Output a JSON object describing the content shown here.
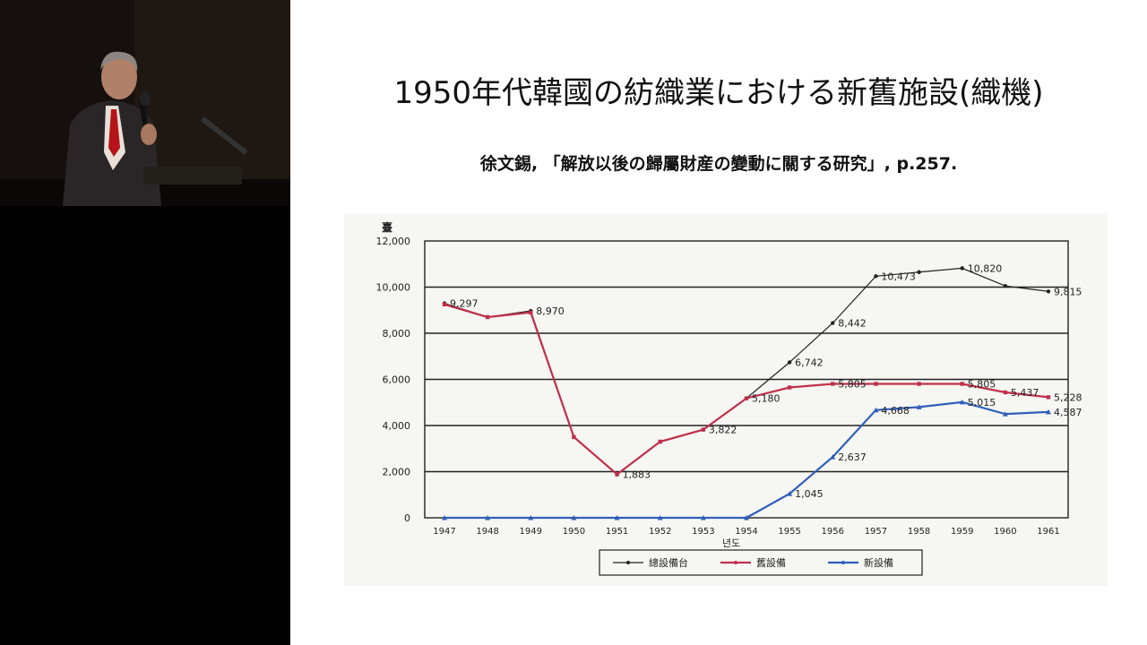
{
  "slide": {
    "title": "1950年代韓國の紡織業における新舊施設(織機)",
    "citation": "徐文錫, 「解放以後の歸屬財産の變動に關する研究」, p.257."
  },
  "colors": {
    "total": "#222222",
    "old": "#c0304a",
    "new": "#2f5fb8",
    "grid": "#222222"
  },
  "chart_data": {
    "type": "line",
    "ylabel": "臺",
    "xlabel": "년도",
    "ylim": [
      0,
      12000
    ],
    "yticks": [
      "0",
      "2,000",
      "4,000",
      "6,000",
      "8,000",
      "10,000",
      "12,000"
    ],
    "categories": [
      "1947",
      "1948",
      "1949",
      "1950",
      "1951",
      "1952",
      "1953",
      "1954",
      "1955",
      "1956",
      "1957",
      "1958",
      "1959",
      "1960",
      "1961"
    ],
    "grid": true,
    "legend_position": "bottom",
    "series": [
      {
        "name": "總設備台",
        "color_key": "total",
        "values": [
          9297,
          8700,
          8970,
          3500,
          1883,
          3300,
          3822,
          5180,
          6742,
          8442,
          10473,
          10650,
          10820,
          10050,
          9815
        ]
      },
      {
        "name": "舊設備",
        "color_key": "old",
        "values": [
          9250,
          8700,
          8900,
          3500,
          1883,
          3300,
          3822,
          5180,
          5650,
          5805,
          5805,
          5805,
          5805,
          5437,
          5228
        ]
      },
      {
        "name": "新設備",
        "color_key": "new",
        "values": [
          0,
          0,
          0,
          0,
          0,
          0,
          0,
          0,
          1045,
          2637,
          4668,
          4800,
          5015,
          4500,
          4587
        ]
      }
    ],
    "data_labels": [
      {
        "series": 0,
        "index": 0,
        "text": "9,297"
      },
      {
        "series": 0,
        "index": 2,
        "text": "8,970"
      },
      {
        "series": 0,
        "index": 4,
        "text": "1,883"
      },
      {
        "series": 0,
        "index": 6,
        "text": "3,822"
      },
      {
        "series": 0,
        "index": 7,
        "text": "5,180"
      },
      {
        "series": 0,
        "index": 8,
        "text": "6,742"
      },
      {
        "series": 0,
        "index": 9,
        "text": "8,442"
      },
      {
        "series": 0,
        "index": 10,
        "text": "10,473"
      },
      {
        "series": 0,
        "index": 12,
        "text": "10,820"
      },
      {
        "series": 0,
        "index": 14,
        "text": "9,815"
      },
      {
        "series": 1,
        "index": 9,
        "text": "5,805"
      },
      {
        "series": 1,
        "index": 12,
        "text": "5,805"
      },
      {
        "series": 1,
        "index": 13,
        "text": "5,437"
      },
      {
        "series": 1,
        "index": 14,
        "text": "5,228"
      },
      {
        "series": 2,
        "index": 8,
        "text": "1,045"
      },
      {
        "series": 2,
        "index": 9,
        "text": "2,637"
      },
      {
        "series": 2,
        "index": 10,
        "text": "4,668"
      },
      {
        "series": 2,
        "index": 12,
        "text": "5,015"
      },
      {
        "series": 2,
        "index": 14,
        "text": "4,587"
      }
    ]
  }
}
